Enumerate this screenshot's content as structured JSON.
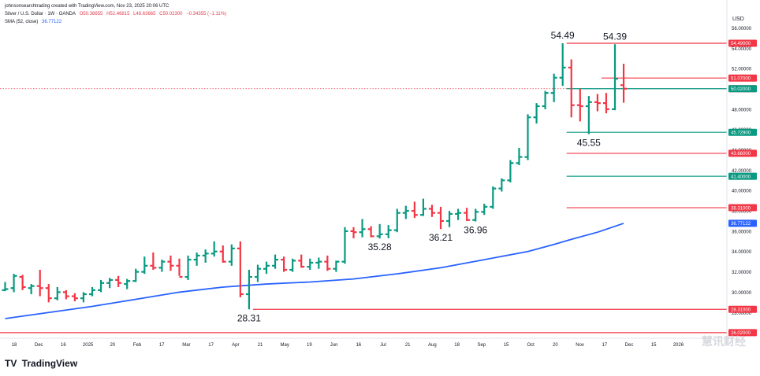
{
  "header": {
    "attribution": "johnsonsearchtrading created with TradingView.com, Nov 23, 2025 20:06 UTC",
    "symbol": "Silver / U.S. Dollar · 1W · OANDA",
    "ohlc": {
      "open": "O50.36655",
      "high": "H52.46815",
      "low": "L48.63665",
      "close": "C50.02300",
      "change": "−0.34355 (−1.11%)"
    },
    "sma_label": "SMA (52, close)",
    "sma_value": "36.77122"
  },
  "currency": "USD",
  "footer": {
    "brand": "TradingView",
    "logo": "TV",
    "watermark": "慧讯财经"
  },
  "colors": {
    "up": "#089981",
    "down": "#f23645",
    "sma": "#2962ff",
    "level_red": "#f23645",
    "level_green": "#089981"
  },
  "chart_data": {
    "type": "bar",
    "style": "ohlc-weekly",
    "y_axis": {
      "ticks": [
        "56.00000",
        "54.00000",
        "52.00000",
        "50.00000",
        "48.00000",
        "46.00000",
        "44.00000",
        "42.00000",
        "40.00000",
        "38.00000",
        "36.00000",
        "34.00000",
        "32.00000",
        "30.00000",
        "28.00000",
        "26.00000"
      ]
    },
    "x_axis": {
      "ticks": [
        "18",
        "Dec",
        "16",
        "2025",
        "20",
        "Feb",
        "17",
        "Mar",
        "17",
        "Apr",
        "21",
        "May",
        "19",
        "Jun",
        "16",
        "Jul",
        "21",
        "Aug",
        "18",
        "Sep",
        "15",
        "Oct",
        "20",
        "Nov",
        "17",
        "Dec",
        "15",
        "2026"
      ]
    },
    "ohlc": [
      [
        30.2,
        31.0,
        30.1,
        30.3
      ],
      [
        30.4,
        31.8,
        30.0,
        31.6
      ],
      [
        31.5,
        31.7,
        30.2,
        30.5
      ],
      [
        30.4,
        30.8,
        29.8,
        30.6
      ],
      [
        30.6,
        32.2,
        29.6,
        30.4
      ],
      [
        30.4,
        30.8,
        29.0,
        29.4
      ],
      [
        29.4,
        30.5,
        29.2,
        30.0
      ],
      [
        30.0,
        30.2,
        29.3,
        29.6
      ],
      [
        29.6,
        29.9,
        29.1,
        29.4
      ],
      [
        29.4,
        30.0,
        29.0,
        29.8
      ],
      [
        29.8,
        30.5,
        29.6,
        30.2
      ],
      [
        30.2,
        31.2,
        30.0,
        30.9
      ],
      [
        30.9,
        31.4,
        30.4,
        31.2
      ],
      [
        31.2,
        31.6,
        30.5,
        30.9
      ],
      [
        30.8,
        31.3,
        30.3,
        31.1
      ],
      [
        31.1,
        32.3,
        31.0,
        32.0
      ],
      [
        32.0,
        33.5,
        31.8,
        32.6
      ],
      [
        32.6,
        33.9,
        32.2,
        32.4
      ],
      [
        32.4,
        33.2,
        32.0,
        33.0
      ],
      [
        33.0,
        33.6,
        32.1,
        32.6
      ],
      [
        32.6,
        33.3,
        31.6,
        31.5
      ],
      [
        31.5,
        33.6,
        31.2,
        33.2
      ],
      [
        33.2,
        33.9,
        32.6,
        33.6
      ],
      [
        33.6,
        34.2,
        32.9,
        33.8
      ],
      [
        33.8,
        35.0,
        33.5,
        34.0
      ],
      [
        34.0,
        34.6,
        32.9,
        33.0
      ],
      [
        33.0,
        34.7,
        32.6,
        34.3
      ],
      [
        34.3,
        35.0,
        29.5,
        29.8
      ],
      [
        29.8,
        32.2,
        28.31,
        31.5
      ],
      [
        31.5,
        32.7,
        31.0,
        32.3
      ],
      [
        32.3,
        33.0,
        31.8,
        32.6
      ],
      [
        32.6,
        33.7,
        32.3,
        33.2
      ],
      [
        33.2,
        33.5,
        32.0,
        32.2
      ],
      [
        32.2,
        33.3,
        32.0,
        33.1
      ],
      [
        33.1,
        33.7,
        32.4,
        32.5
      ],
      [
        32.5,
        33.3,
        32.2,
        32.9
      ],
      [
        32.9,
        33.4,
        32.3,
        33.0
      ],
      [
        33.0,
        33.6,
        32.1,
        32.3
      ],
      [
        32.3,
        33.1,
        32.0,
        33.0
      ],
      [
        33.0,
        36.4,
        32.8,
        36.0
      ],
      [
        36.0,
        36.4,
        35.3,
        35.9
      ],
      [
        35.9,
        37.2,
        35.4,
        36.2
      ],
      [
        36.2,
        36.5,
        35.4,
        35.5
      ],
      [
        35.5,
        36.7,
        35.28,
        35.7
      ],
      [
        35.7,
        36.6,
        35.3,
        36.1
      ],
      [
        36.1,
        38.2,
        35.9,
        37.8
      ],
      [
        37.8,
        38.5,
        37.2,
        38.0
      ],
      [
        38.0,
        38.9,
        37.3,
        37.6
      ],
      [
        37.6,
        39.2,
        37.5,
        38.2
      ],
      [
        38.2,
        38.6,
        37.4,
        37.8
      ],
      [
        37.8,
        38.4,
        36.21,
        37.0
      ],
      [
        37.0,
        38.0,
        36.4,
        37.7
      ],
      [
        37.7,
        38.2,
        37.1,
        37.8
      ],
      [
        37.8,
        38.3,
        37.0,
        37.1
      ],
      [
        37.1,
        38.2,
        36.96,
        37.9
      ],
      [
        37.9,
        38.7,
        37.6,
        38.4
      ],
      [
        38.4,
        40.4,
        38.2,
        40.2
      ],
      [
        40.2,
        41.2,
        39.9,
        41.0
      ],
      [
        41.0,
        43.0,
        40.8,
        42.7
      ],
      [
        42.7,
        44.2,
        42.5,
        43.3
      ],
      [
        43.3,
        47.5,
        43.0,
        47.2
      ],
      [
        47.2,
        48.6,
        46.6,
        48.3
      ],
      [
        48.3,
        49.8,
        48.0,
        49.6
      ],
      [
        49.6,
        51.5,
        48.7,
        51.1
      ],
      [
        51.1,
        54.49,
        50.3,
        52.1
      ],
      [
        52.1,
        52.9,
        47.2,
        48.4
      ],
      [
        48.4,
        50.0,
        46.8,
        48.3
      ],
      [
        48.3,
        49.3,
        45.55,
        48.7
      ],
      [
        48.7,
        49.5,
        47.8,
        48.6
      ],
      [
        48.6,
        49.6,
        47.6,
        48.0
      ],
      [
        48.0,
        54.39,
        47.9,
        51.0
      ],
      [
        50.37,
        52.47,
        48.64,
        50.02
      ]
    ],
    "sma": {
      "name": "SMA (52, close)",
      "values": [
        [
          0,
          27.4
        ],
        [
          5,
          28.0
        ],
        [
          10,
          28.6
        ],
        [
          15,
          29.3
        ],
        [
          20,
          30.0
        ],
        [
          25,
          30.5
        ],
        [
          30,
          30.8
        ],
        [
          35,
          31.0
        ],
        [
          40,
          31.3
        ],
        [
          45,
          31.8
        ],
        [
          50,
          32.4
        ],
        [
          55,
          33.2
        ],
        [
          60,
          34.0
        ],
        [
          63,
          34.7
        ],
        [
          65,
          35.2
        ],
        [
          68,
          35.9
        ],
        [
          71,
          36.77
        ]
      ]
    },
    "levels": [
      {
        "price": 54.49,
        "label": "54.49000",
        "color": "red",
        "start": 64
      },
      {
        "price": 51.07,
        "label": "51.07000",
        "color": "red",
        "start": 68
      },
      {
        "price": 50.023,
        "label": "50.02300",
        "color": "red",
        "start": 64
      },
      {
        "price": 50.02,
        "label": "50.02000",
        "color": "green",
        "start": 64
      },
      {
        "price": 45.729,
        "label": "45.72900",
        "color": "green",
        "start": 64
      },
      {
        "price": 43.66,
        "label": "43.66000",
        "color": "red",
        "start": 64
      },
      {
        "price": 41.4,
        "label": "41.40000",
        "color": "green",
        "start": 64
      },
      {
        "price": 38.31,
        "label": "38.31000",
        "color": "red",
        "start": 64
      },
      {
        "price": 36.77122,
        "label": "36.77122",
        "color": "sma",
        "start": null
      },
      {
        "price": 28.31,
        "label": "28.31000",
        "color": "red",
        "start": 28
      },
      {
        "price": 26.02,
        "label": "26.02000",
        "color": "red",
        "start": -1
      }
    ],
    "annotations": [
      {
        "text": "54.49",
        "bar": 64,
        "price": 54.49,
        "pos": "above"
      },
      {
        "text": "54.39",
        "bar": 70,
        "price": 54.39,
        "pos": "above"
      },
      {
        "text": "45.55",
        "bar": 67,
        "price": 45.55,
        "pos": "below"
      },
      {
        "text": "28.31",
        "bar": 28,
        "price": 28.31,
        "pos": "below"
      },
      {
        "text": "35.28",
        "bar": 43,
        "price": 35.28,
        "pos": "below"
      },
      {
        "text": "36.21",
        "bar": 50,
        "price": 36.21,
        "pos": "below"
      },
      {
        "text": "36.96",
        "bar": 54,
        "price": 36.96,
        "pos": "below"
      }
    ]
  }
}
